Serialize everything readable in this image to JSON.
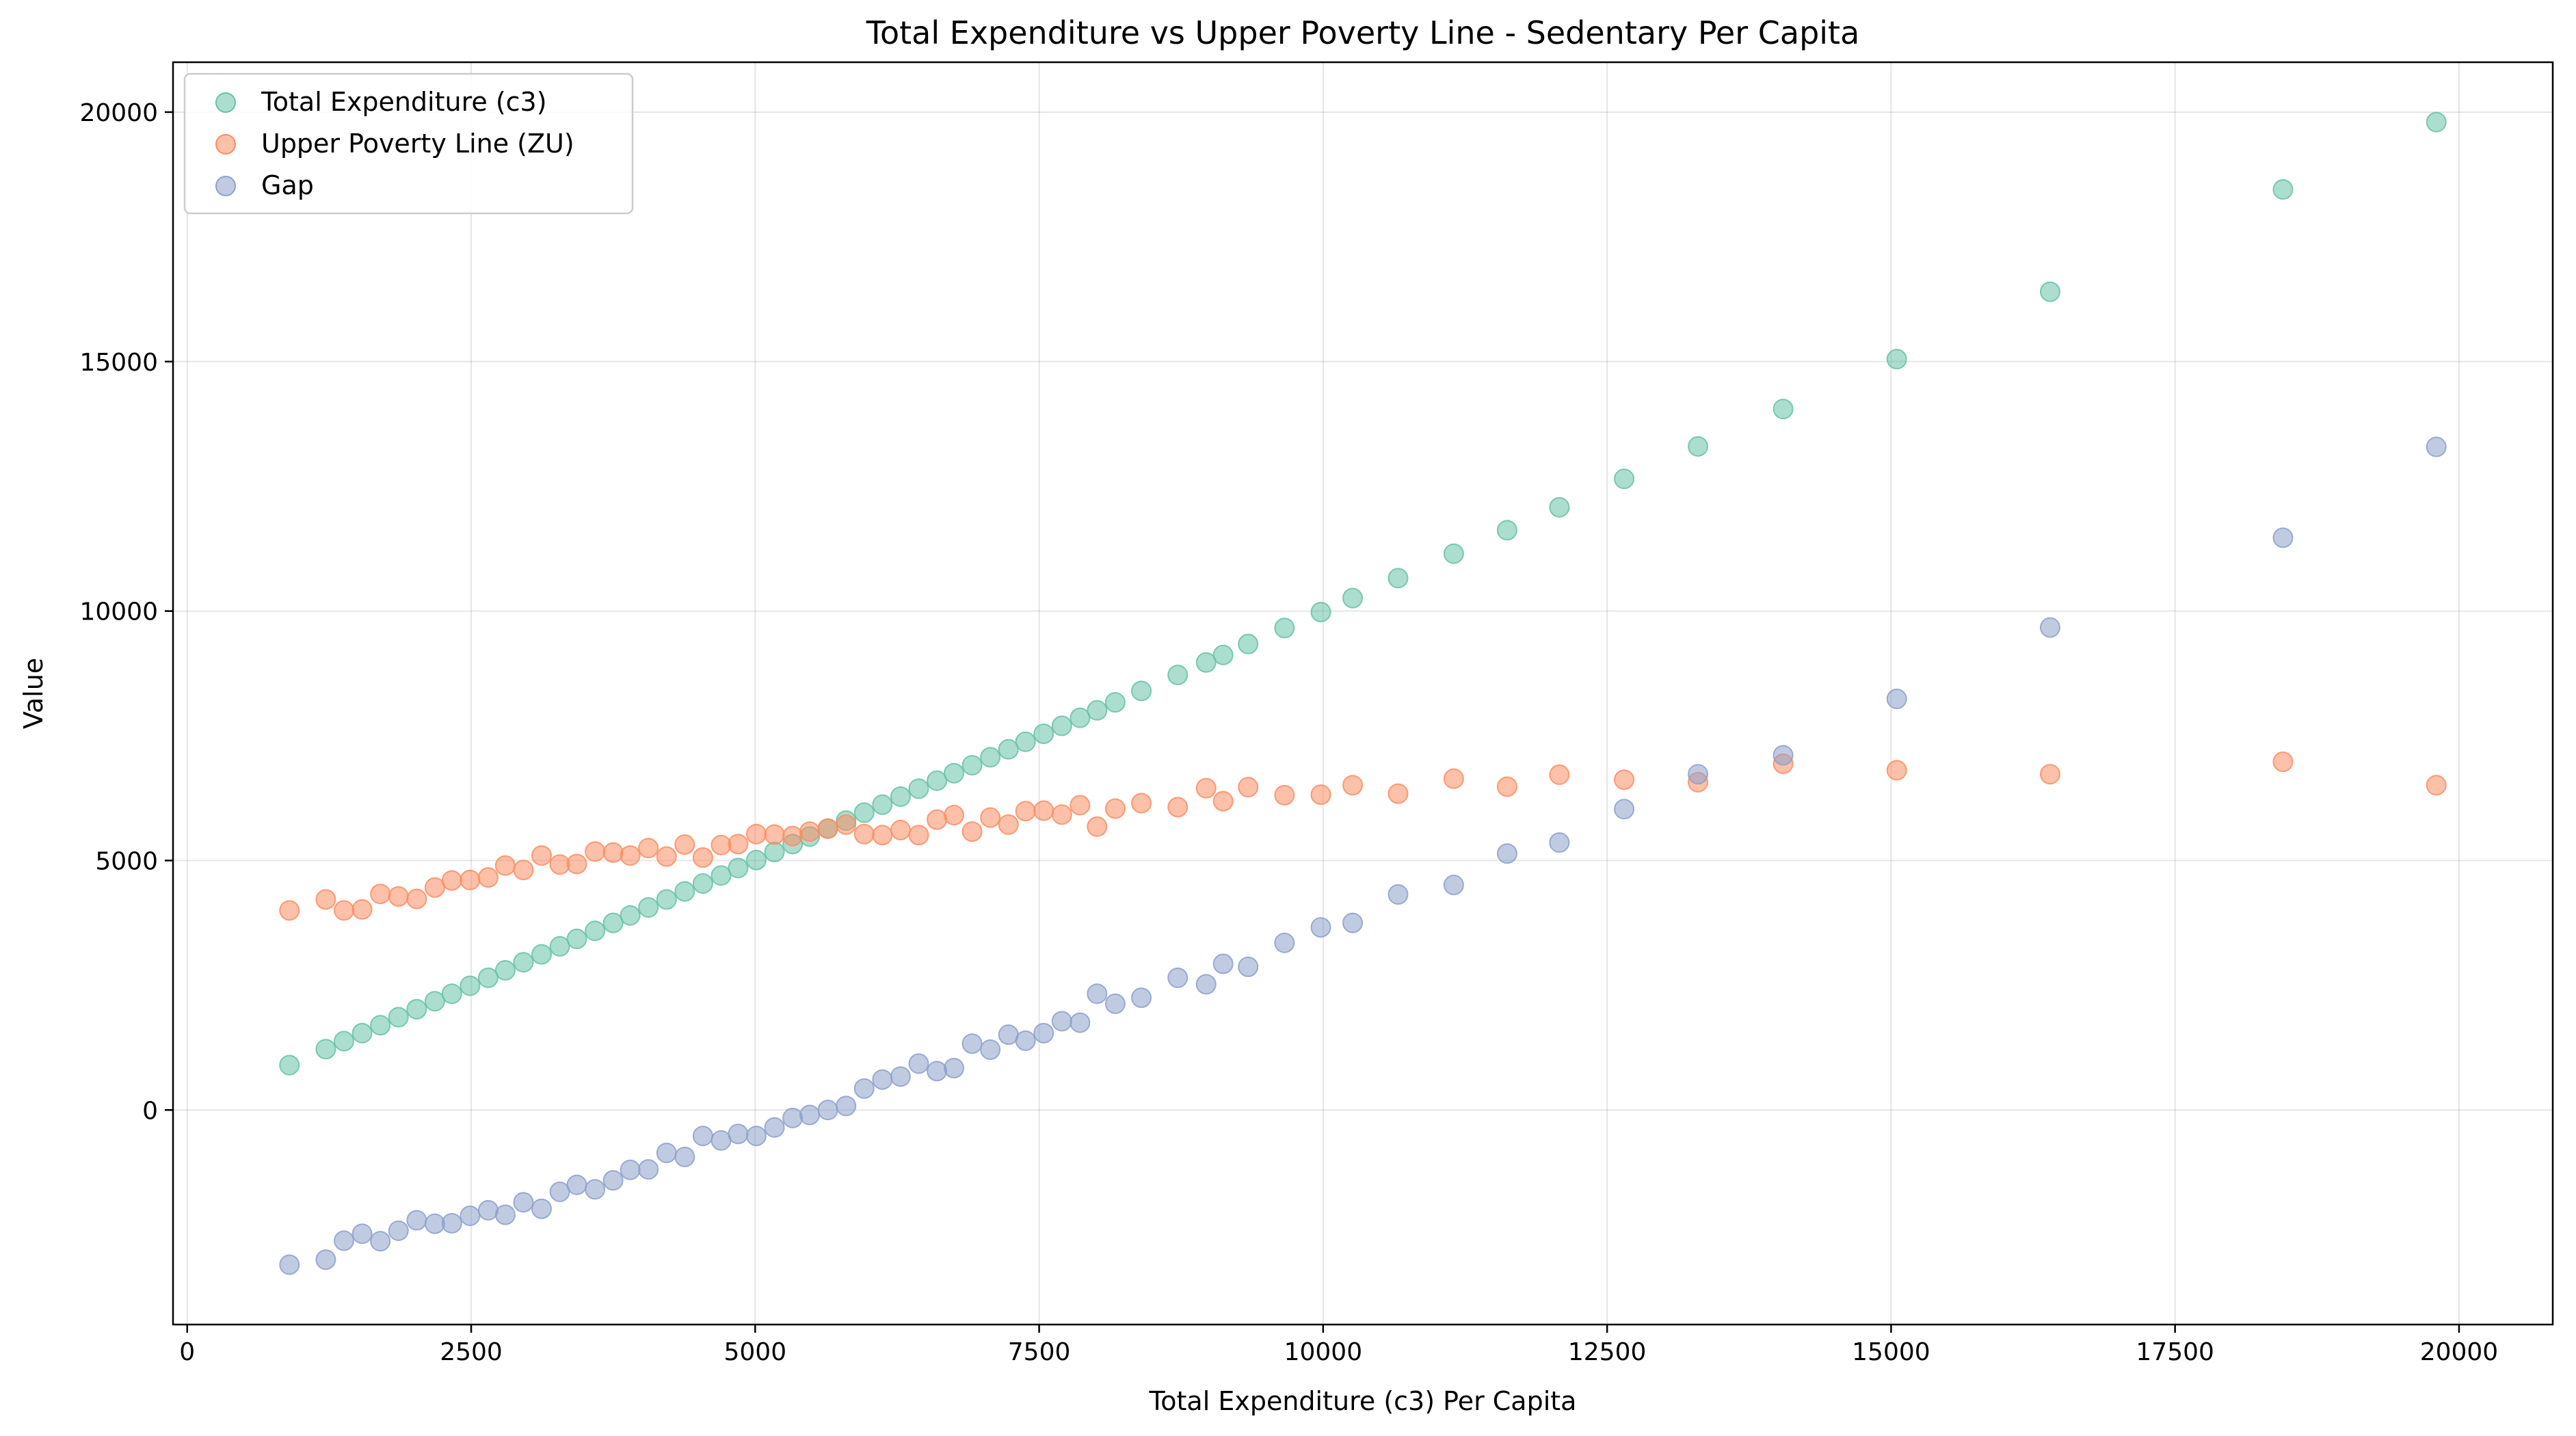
{
  "chart_data": {
    "type": "scatter",
    "title": "Total Expenditure vs Upper Poverty Line - Sedentary Per Capita",
    "xlabel": "Total Expenditure (c3) Per Capita",
    "ylabel": "Value",
    "xlim": [
      -125,
      20825
    ],
    "ylim": [
      -4300,
      21000
    ],
    "xticks": [
      0,
      2500,
      5000,
      7500,
      10000,
      12500,
      15000,
      17500,
      20000
    ],
    "yticks": [
      0,
      5000,
      10000,
      15000,
      20000
    ],
    "grid": true,
    "legend_position": "top-left",
    "x": [
      900,
      1220,
      1380,
      1540,
      1700,
      1860,
      2020,
      2180,
      2330,
      2490,
      2650,
      2800,
      2960,
      3120,
      3280,
      3430,
      3590,
      3750,
      3900,
      4060,
      4220,
      4380,
      4540,
      4700,
      4850,
      5010,
      5170,
      5330,
      5480,
      5640,
      5800,
      5960,
      6120,
      6280,
      6440,
      6600,
      6750,
      6910,
      7070,
      7230,
      7380,
      7540,
      7700,
      7860,
      8010,
      8170,
      8400,
      8720,
      8970,
      9120,
      9340,
      9660,
      9980,
      10260,
      10660,
      11150,
      11620,
      12080,
      12650,
      13300,
      14050,
      15050,
      16400,
      18450,
      19800
    ],
    "series": [
      {
        "name": "Total Expenditure (c3)",
        "color": "#66c2a5",
        "values": [
          900,
          1220,
          1380,
          1540,
          1700,
          1860,
          2020,
          2180,
          2330,
          2490,
          2650,
          2800,
          2960,
          3120,
          3280,
          3430,
          3590,
          3750,
          3900,
          4060,
          4220,
          4380,
          4540,
          4700,
          4850,
          5010,
          5170,
          5330,
          5480,
          5640,
          5800,
          5960,
          6120,
          6280,
          6440,
          6600,
          6750,
          6910,
          7070,
          7230,
          7380,
          7540,
          7700,
          7860,
          8010,
          8170,
          8400,
          8720,
          8970,
          9120,
          9340,
          9660,
          9980,
          10260,
          10660,
          11150,
          11620,
          12080,
          12650,
          13300,
          14050,
          15050,
          16400,
          18450,
          19800
        ]
      },
      {
        "name": "Upper Poverty Line (ZU)",
        "color": "#fc8d62",
        "values": [
          4000,
          4220,
          4000,
          4020,
          4330,
          4280,
          4230,
          4460,
          4600,
          4610,
          4660,
          4900,
          4810,
          5100,
          4920,
          4930,
          5180,
          5160,
          5100,
          5250,
          5080,
          5320,
          5060,
          5310,
          5330,
          5530,
          5520,
          5490,
          5580,
          5640,
          5720,
          5530,
          5510,
          5610,
          5510,
          5820,
          5910,
          5580,
          5860,
          5720,
          5990,
          6000,
          5920,
          6110,
          5680,
          6040,
          6150,
          6070,
          6450,
          6190,
          6470,
          6310,
          6320,
          6510,
          6340,
          6640,
          6480,
          6720,
          6620,
          6570,
          6940,
          6810,
          6730,
          6980,
          6510
        ]
      },
      {
        "name": "Gap",
        "color": "#8da0cb",
        "values": [
          -3100,
          -3000,
          -2620,
          -2480,
          -2630,
          -2420,
          -2210,
          -2280,
          -2270,
          -2120,
          -2010,
          -2100,
          -1850,
          -1980,
          -1640,
          -1500,
          -1590,
          -1410,
          -1200,
          -1190,
          -860,
          -940,
          -520,
          -610,
          -480,
          -520,
          -350,
          -160,
          -100,
          0,
          80,
          430,
          610,
          670,
          930,
          780,
          840,
          1330,
          1210,
          1510,
          1390,
          1540,
          1780,
          1750,
          2330,
          2130,
          2250,
          2650,
          2520,
          2930,
          2870,
          3350,
          3660,
          3750,
          4320,
          4510,
          5140,
          5360,
          6030,
          6730,
          7110,
          8240,
          9670,
          11470,
          13290
        ]
      }
    ]
  }
}
